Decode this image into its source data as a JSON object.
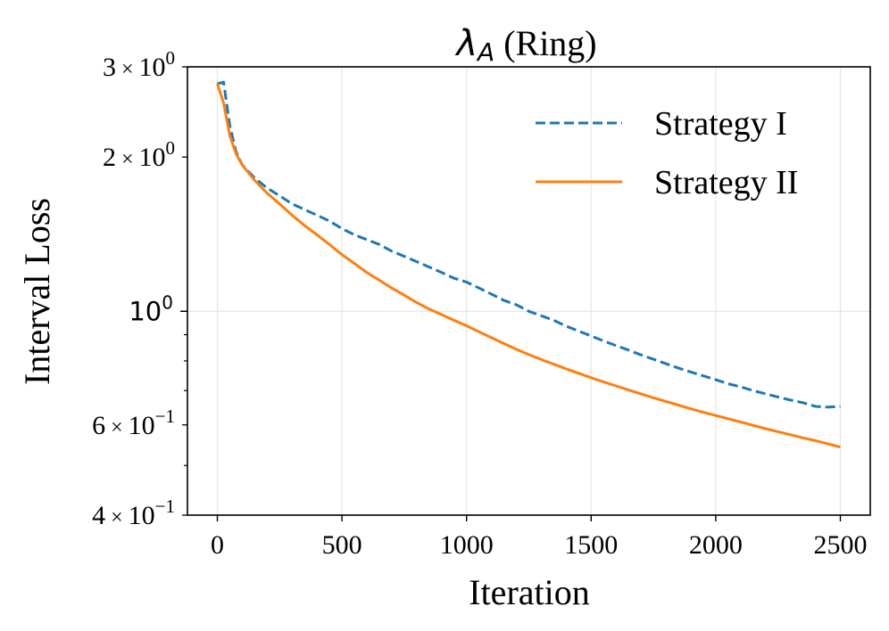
{
  "chart_data": {
    "type": "line",
    "title_symbol": "λ",
    "title_subscript": "A",
    "title_suffix": " (Ring)",
    "xlabel": "Iteration",
    "ylabel": "Interval Loss",
    "yscale": "log",
    "xlim": [
      -120,
      2620
    ],
    "ylim": [
      0.4,
      3.0
    ],
    "grid": true,
    "legend_position": "upper-right",
    "x_ticks": [
      {
        "value": 0,
        "label": "0"
      },
      {
        "value": 500,
        "label": "500"
      },
      {
        "value": 1000,
        "label": "1000"
      },
      {
        "value": 1500,
        "label": "1500"
      },
      {
        "value": 2000,
        "label": "2000"
      },
      {
        "value": 2500,
        "label": "2500"
      }
    ],
    "y_ticks": [
      {
        "value": 3.0,
        "mantissa": "3",
        "exponent": "0"
      },
      {
        "value": 2.0,
        "mantissa": "2",
        "exponent": "0"
      },
      {
        "value": 0.6,
        "mantissa": "6",
        "exponent": "−1"
      },
      {
        "value": 0.4,
        "mantissa": "4",
        "exponent": "−1"
      }
    ],
    "y_major_tick": {
      "value": 1.0,
      "base": "10",
      "exponent": "0"
    },
    "y_minor_ticks": [
      0.5,
      0.7,
      0.8,
      0.9
    ],
    "series": [
      {
        "name": "Strategy I",
        "color": "#1f77b4",
        "dash": "dashed",
        "points": [
          [
            0,
            2.78
          ],
          [
            25,
            2.8
          ],
          [
            50,
            2.3
          ],
          [
            75,
            2.05
          ],
          [
            100,
            1.93
          ],
          [
            150,
            1.82
          ],
          [
            200,
            1.74
          ],
          [
            250,
            1.68
          ],
          [
            300,
            1.62
          ],
          [
            350,
            1.58
          ],
          [
            400,
            1.54
          ],
          [
            450,
            1.5
          ],
          [
            500,
            1.45
          ],
          [
            550,
            1.41
          ],
          [
            600,
            1.38
          ],
          [
            650,
            1.35
          ],
          [
            700,
            1.31
          ],
          [
            750,
            1.28
          ],
          [
            800,
            1.25
          ],
          [
            850,
            1.22
          ],
          [
            900,
            1.19
          ],
          [
            950,
            1.16
          ],
          [
            1000,
            1.14
          ],
          [
            1050,
            1.11
          ],
          [
            1100,
            1.08
          ],
          [
            1150,
            1.05
          ],
          [
            1200,
            1.03
          ],
          [
            1250,
            1.0
          ],
          [
            1300,
            0.98
          ],
          [
            1350,
            0.96
          ],
          [
            1400,
            0.935
          ],
          [
            1450,
            0.915
          ],
          [
            1500,
            0.895
          ],
          [
            1550,
            0.875
          ],
          [
            1600,
            0.857
          ],
          [
            1650,
            0.84
          ],
          [
            1700,
            0.822
          ],
          [
            1750,
            0.806
          ],
          [
            1800,
            0.79
          ],
          [
            1850,
            0.775
          ],
          [
            1900,
            0.761
          ],
          [
            1950,
            0.748
          ],
          [
            2000,
            0.735
          ],
          [
            2050,
            0.722
          ],
          [
            2100,
            0.712
          ],
          [
            2150,
            0.7
          ],
          [
            2200,
            0.69
          ],
          [
            2250,
            0.68
          ],
          [
            2300,
            0.671
          ],
          [
            2350,
            0.663
          ],
          [
            2400,
            0.652
          ],
          [
            2450,
            0.65
          ],
          [
            2500,
            0.652
          ]
        ]
      },
      {
        "name": "Strategy II",
        "color": "#ff7f0e",
        "dash": "solid",
        "points": [
          [
            0,
            2.78
          ],
          [
            25,
            2.55
          ],
          [
            50,
            2.2
          ],
          [
            75,
            2.03
          ],
          [
            100,
            1.93
          ],
          [
            150,
            1.8
          ],
          [
            200,
            1.7
          ],
          [
            250,
            1.62
          ],
          [
            300,
            1.54
          ],
          [
            350,
            1.47
          ],
          [
            400,
            1.41
          ],
          [
            450,
            1.35
          ],
          [
            500,
            1.29
          ],
          [
            550,
            1.24
          ],
          [
            600,
            1.19
          ],
          [
            650,
            1.15
          ],
          [
            700,
            1.11
          ],
          [
            750,
            1.075
          ],
          [
            800,
            1.04
          ],
          [
            850,
            1.01
          ],
          [
            900,
            0.985
          ],
          [
            950,
            0.96
          ],
          [
            1000,
            0.937
          ],
          [
            1050,
            0.912
          ],
          [
            1100,
            0.888
          ],
          [
            1150,
            0.865
          ],
          [
            1200,
            0.843
          ],
          [
            1250,
            0.823
          ],
          [
            1300,
            0.805
          ],
          [
            1350,
            0.788
          ],
          [
            1400,
            0.772
          ],
          [
            1450,
            0.757
          ],
          [
            1500,
            0.742
          ],
          [
            1550,
            0.728
          ],
          [
            1600,
            0.715
          ],
          [
            1650,
            0.702
          ],
          [
            1700,
            0.69
          ],
          [
            1750,
            0.678
          ],
          [
            1800,
            0.667
          ],
          [
            1850,
            0.656
          ],
          [
            1900,
            0.645
          ],
          [
            1950,
            0.635
          ],
          [
            2000,
            0.626
          ],
          [
            2050,
            0.617
          ],
          [
            2100,
            0.608
          ],
          [
            2150,
            0.599
          ],
          [
            2200,
            0.59
          ],
          [
            2250,
            0.582
          ],
          [
            2300,
            0.574
          ],
          [
            2350,
            0.566
          ],
          [
            2400,
            0.559
          ],
          [
            2450,
            0.551
          ],
          [
            2500,
            0.543
          ]
        ]
      }
    ]
  }
}
